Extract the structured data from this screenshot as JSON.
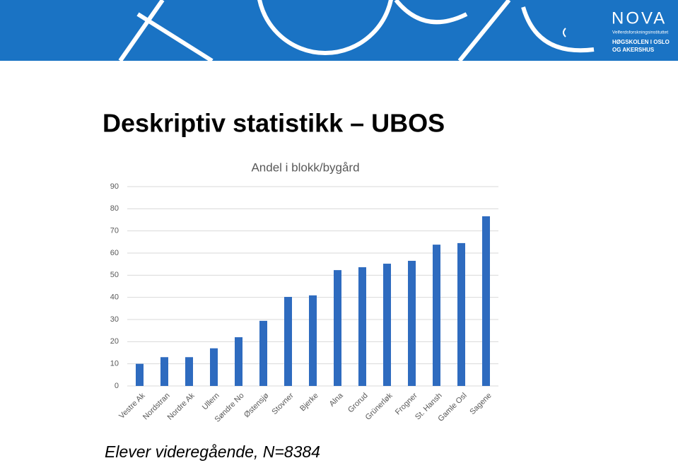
{
  "header": {
    "logo": "NOVA",
    "institute": "Velferdsforskningsinstituttet",
    "school_line1": "HØGSKOLEN I OSLO",
    "school_line2": "OG AKERSHUS"
  },
  "slide": {
    "title": "Deskriptiv statistikk – UBOS",
    "footer": "Elever videregående, N=8384"
  },
  "chart_data": {
    "type": "bar",
    "title": "Andel i blokk/bygård",
    "categories": [
      "Vestre Ak",
      "Nordstran",
      "Nordre Ak",
      "Ullern",
      "Søndre No",
      "Østensjø",
      "Stovner",
      "Bjerke",
      "Alna",
      "Grorud",
      "Grünerløk",
      "Frogner",
      "St. Hansh",
      "Gamle Osl",
      "Sagene"
    ],
    "values": [
      10,
      13,
      13,
      17,
      22,
      29.4,
      40.2,
      40.9,
      52.3,
      53.6,
      55.2,
      56.5,
      63.8,
      64.5,
      76.6
    ],
    "color": "#2e6bbf",
    "ylim": [
      0,
      90
    ],
    "yticks": [
      0,
      10,
      20,
      30,
      40,
      50,
      60,
      70,
      80,
      90
    ],
    "grid": true
  }
}
